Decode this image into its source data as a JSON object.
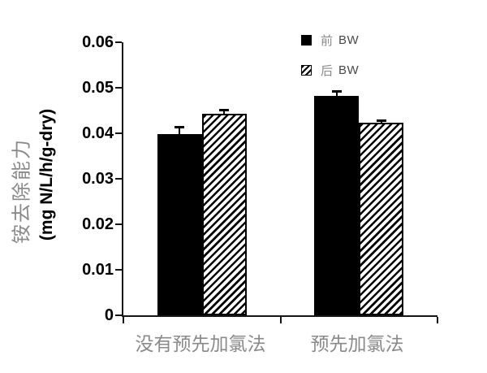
{
  "chart_data": {
    "type": "bar",
    "title": "",
    "categories": [
      "没有预先加氯法",
      "预先加氯法"
    ],
    "series": [
      {
        "name": "前 BW",
        "name_cn": "前",
        "name_latin": "BW",
        "fill": "solid-black",
        "values": [
          0.0398,
          0.0483
        ],
        "errors": [
          0.0016,
          0.0011
        ]
      },
      {
        "name": "后 BW",
        "name_cn": "后",
        "name_latin": "BW",
        "fill": "diagonal-hatch",
        "values": [
          0.0443,
          0.0424
        ],
        "errors": [
          0.0009,
          0.0005
        ]
      }
    ],
    "ylabel_cn": "铵去除能力",
    "ylabel_unit": "(mg N/L/h/g-dry)",
    "xlabel": "",
    "ylim": [
      0,
      0.06
    ],
    "ytick_step": 0.01,
    "yticks": [
      "0",
      "0.01",
      "0.02",
      "0.03",
      "0.04",
      "0.05",
      "0.06"
    ],
    "grid": false,
    "legend_position": "top-right-inside",
    "error_bars": "cap-top"
  },
  "colors": {
    "background": "#ffffff",
    "bar_solid": "#000000",
    "hatch_stripe": "#000000",
    "axis": "#161616",
    "tick_label": "#000000",
    "cjk_text": "#8a8a8a",
    "legend_latin_text": "#4a4a4a"
  }
}
